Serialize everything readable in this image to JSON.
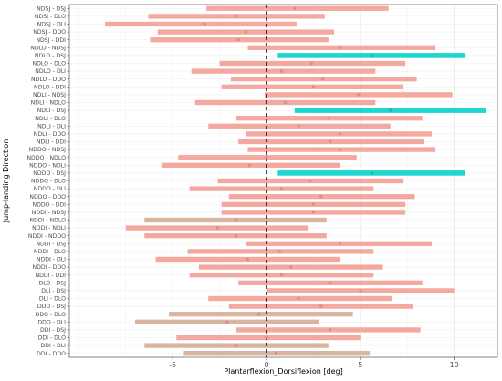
{
  "chart_data": {
    "type": "ci-range",
    "xlabel": "Plantarflexion_Dorsiflexion [deg]",
    "ylabel": "Jump-landing Direction",
    "xlim": [
      -10.5,
      12.3
    ],
    "xticks": [
      -5,
      0,
      5,
      10
    ],
    "reference_line_x": 0,
    "grid": true,
    "colors": {
      "default": "#f4a9a0",
      "tan": "#d9b4a0",
      "highlight": "#1ed6d0",
      "point": "#e58a80",
      "zero_line": "#000000"
    },
    "rows": [
      {
        "label": "NDSJ - DSJ",
        "low": -3.2,
        "high": 6.5,
        "mean": 1.5,
        "color": "default"
      },
      {
        "label": "NDSJ - DLO",
        "low": -6.3,
        "high": 3.1,
        "mean": -1.6,
        "color": "default"
      },
      {
        "label": "NDSJ - DLI",
        "low": -8.6,
        "high": 1.6,
        "mean": -3.3,
        "color": "default"
      },
      {
        "label": "NDSJ - DDO",
        "low": -5.8,
        "high": 3.6,
        "mean": -1.1,
        "color": "default"
      },
      {
        "label": "NDSJ - DDI",
        "low": -6.2,
        "high": 3.3,
        "mean": -1.5,
        "color": "default"
      },
      {
        "label": "NDLO - NDSJ",
        "low": -1.0,
        "high": 9.0,
        "mean": 3.9,
        "color": "default"
      },
      {
        "label": "NDLO - DSJ",
        "low": 0.6,
        "high": 10.6,
        "mean": 5.6,
        "color": "highlight"
      },
      {
        "label": "NDLO - DLO",
        "low": -2.5,
        "high": 7.4,
        "mean": 2.4,
        "color": "default"
      },
      {
        "label": "NDLO - DLI",
        "low": -4.0,
        "high": 5.8,
        "mean": 0.8,
        "color": "default"
      },
      {
        "label": "NDLO - DDO",
        "low": -1.9,
        "high": 8.0,
        "mean": 3.0,
        "color": "default"
      },
      {
        "label": "NDLO - DDI",
        "low": -2.4,
        "high": 7.3,
        "mean": 2.5,
        "color": "default"
      },
      {
        "label": "NDLI - NDSJ",
        "low": -0.1,
        "high": 9.9,
        "mean": 4.9,
        "color": "default"
      },
      {
        "label": "NDLI - NDLO",
        "low": -3.8,
        "high": 5.8,
        "mean": 1.0,
        "color": "default"
      },
      {
        "label": "NDLI - DSJ",
        "low": 1.5,
        "high": 11.7,
        "mean": 6.6,
        "color": "highlight"
      },
      {
        "label": "NDLI - DLO",
        "low": -1.6,
        "high": 8.3,
        "mean": 3.3,
        "color": "default"
      },
      {
        "label": "NDLI - DLI",
        "low": -3.1,
        "high": 6.6,
        "mean": 1.7,
        "color": "default"
      },
      {
        "label": "NDLI - DDO",
        "low": -1.1,
        "high": 8.8,
        "mean": 3.9,
        "color": "default"
      },
      {
        "label": "NDLI - DDI",
        "low": -1.5,
        "high": 8.4,
        "mean": 3.4,
        "color": "default"
      },
      {
        "label": "NDDO - NDSJ",
        "low": -1.0,
        "high": 9.0,
        "mean": 3.9,
        "color": "default"
      },
      {
        "label": "NDDO - NDLO",
        "low": -4.7,
        "high": 4.8,
        "mean": 0.0,
        "color": "default"
      },
      {
        "label": "NDDO - NDLI",
        "low": -5.6,
        "high": 3.9,
        "mean": -0.9,
        "color": "default"
      },
      {
        "label": "NDDO - DSJ",
        "low": 0.6,
        "high": 10.6,
        "mean": 5.6,
        "color": "highlight"
      },
      {
        "label": "NDDO - DLO",
        "low": -2.6,
        "high": 7.3,
        "mean": 2.3,
        "color": "default"
      },
      {
        "label": "NDDO - DLI",
        "low": -4.1,
        "high": 5.7,
        "mean": 0.8,
        "color": "default"
      },
      {
        "label": "NDDO - DDO",
        "low": -2.0,
        "high": 7.9,
        "mean": 2.9,
        "color": "default"
      },
      {
        "label": "NDDO - DDI",
        "low": -2.4,
        "high": 7.4,
        "mean": 2.5,
        "color": "default"
      },
      {
        "label": "NDDI - NDSJ",
        "low": -2.4,
        "high": 7.4,
        "mean": 2.5,
        "color": "default"
      },
      {
        "label": "NDDI - NDLO",
        "low": -6.5,
        "high": 3.2,
        "mean": -1.6,
        "color": "tan"
      },
      {
        "label": "NDDI - NDLI",
        "low": -7.5,
        "high": 2.2,
        "mean": -2.6,
        "color": "default"
      },
      {
        "label": "NDDI - NDDO",
        "low": -6.5,
        "high": 3.2,
        "mean": -1.6,
        "color": "default"
      },
      {
        "label": "NDDI - DSJ",
        "low": -1.1,
        "high": 8.8,
        "mean": 3.9,
        "color": "default"
      },
      {
        "label": "NDDI - DLO",
        "low": -4.2,
        "high": 5.7,
        "mean": 0.7,
        "color": "default"
      },
      {
        "label": "NDDI - DLI",
        "low": -5.9,
        "high": 3.9,
        "mean": -1.0,
        "color": "default"
      },
      {
        "label": "NDDI - DDO",
        "low": -3.6,
        "high": 6.2,
        "mean": 1.3,
        "color": "default"
      },
      {
        "label": "NDDI - DDI",
        "low": -4.1,
        "high": 5.7,
        "mean": 0.8,
        "color": "default"
      },
      {
        "label": "DLO - DSJ",
        "low": -1.5,
        "high": 8.3,
        "mean": 3.4,
        "color": "default"
      },
      {
        "label": "DLI - DSJ",
        "low": 0.0,
        "high": 10.0,
        "mean": 5.0,
        "color": "default"
      },
      {
        "label": "DLI - DLO",
        "low": -3.1,
        "high": 6.7,
        "mean": 1.7,
        "color": "default"
      },
      {
        "label": "DDO - DSJ",
        "low": -2.0,
        "high": 7.8,
        "mean": 2.9,
        "color": "default"
      },
      {
        "label": "DDO - DLO",
        "low": -5.2,
        "high": 4.6,
        "mean": -0.4,
        "color": "tan"
      },
      {
        "label": "DDO - DLI",
        "low": -7.0,
        "high": 2.8,
        "mean": -2.1,
        "color": "tan"
      },
      {
        "label": "DDI - DSJ",
        "low": -1.6,
        "high": 8.2,
        "mean": 3.4,
        "color": "default"
      },
      {
        "label": "DDI - DLO",
        "low": -4.8,
        "high": 5.0,
        "mean": 0.0,
        "color": "default"
      },
      {
        "label": "DDI - DLI",
        "low": -6.5,
        "high": 3.3,
        "mean": -1.6,
        "color": "tan"
      },
      {
        "label": "DDI - DDO",
        "low": -4.4,
        "high": 5.5,
        "mean": 0.5,
        "color": "tan"
      }
    ]
  }
}
